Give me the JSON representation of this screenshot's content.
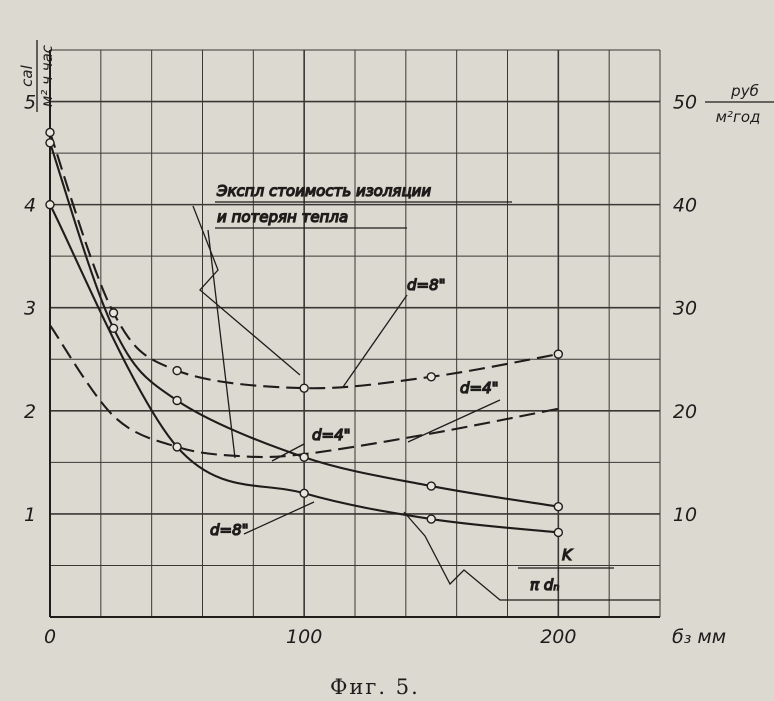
{
  "chart_data": {
    "type": "line",
    "xlabel": "б₃ мм",
    "ylabel_left": [
      "cal",
      "м² ч час"
    ],
    "ylabel_right": [
      "руб",
      "м²год"
    ],
    "caption": "Фиг. 5.",
    "x_ticks": [
      "0",
      "100",
      "200"
    ],
    "y_left_ticks": [
      "1",
      "2",
      "3",
      "4",
      "5"
    ],
    "y_right_ticks": [
      "10",
      "20",
      "30",
      "40",
      "50"
    ],
    "xlim": [
      0,
      240
    ],
    "ylim": [
      0,
      5.5
    ],
    "grid": true,
    "annotations": {
      "cost_line1": "Экспл стоимость изоляции",
      "cost_line2": "и потерян тепла",
      "d8_top": "d=8\"",
      "d4_top": "d=4\"",
      "d4_mid": "d=4\"",
      "d8_bottom": "d=8\"",
      "k_num": "K",
      "k_den": "π dₙ"
    },
    "series": [
      {
        "label": "cost-d8-dashed",
        "style": "dashed",
        "axis": "right",
        "markers": true,
        "x": [
          0,
          25,
          50,
          100,
          150,
          200
        ],
        "y": [
          47,
          29.5,
          23.9,
          22.2,
          23.3,
          25.5
        ]
      },
      {
        "label": "cost-d4-dashed",
        "style": "dashed",
        "axis": "right",
        "markers": false,
        "x": [
          0,
          25,
          50,
          75,
          100,
          150,
          200
        ],
        "y": [
          28.3,
          19.5,
          16.5,
          15.6,
          15.8,
          17.8,
          20.2
        ]
      },
      {
        "label": "heatloss-d8-solid",
        "style": "solid",
        "axis": "left",
        "markers": true,
        "x": [
          0,
          25,
          50,
          100,
          150,
          200
        ],
        "y": [
          4.6,
          2.8,
          2.1,
          1.55,
          1.27,
          1.07
        ]
      },
      {
        "label": "heatloss-d4-solid",
        "style": "solid",
        "axis": "left",
        "markers": true,
        "x": [
          0,
          50,
          100,
          150,
          200
        ],
        "y": [
          4.0,
          1.65,
          1.2,
          0.95,
          0.82
        ]
      }
    ]
  }
}
